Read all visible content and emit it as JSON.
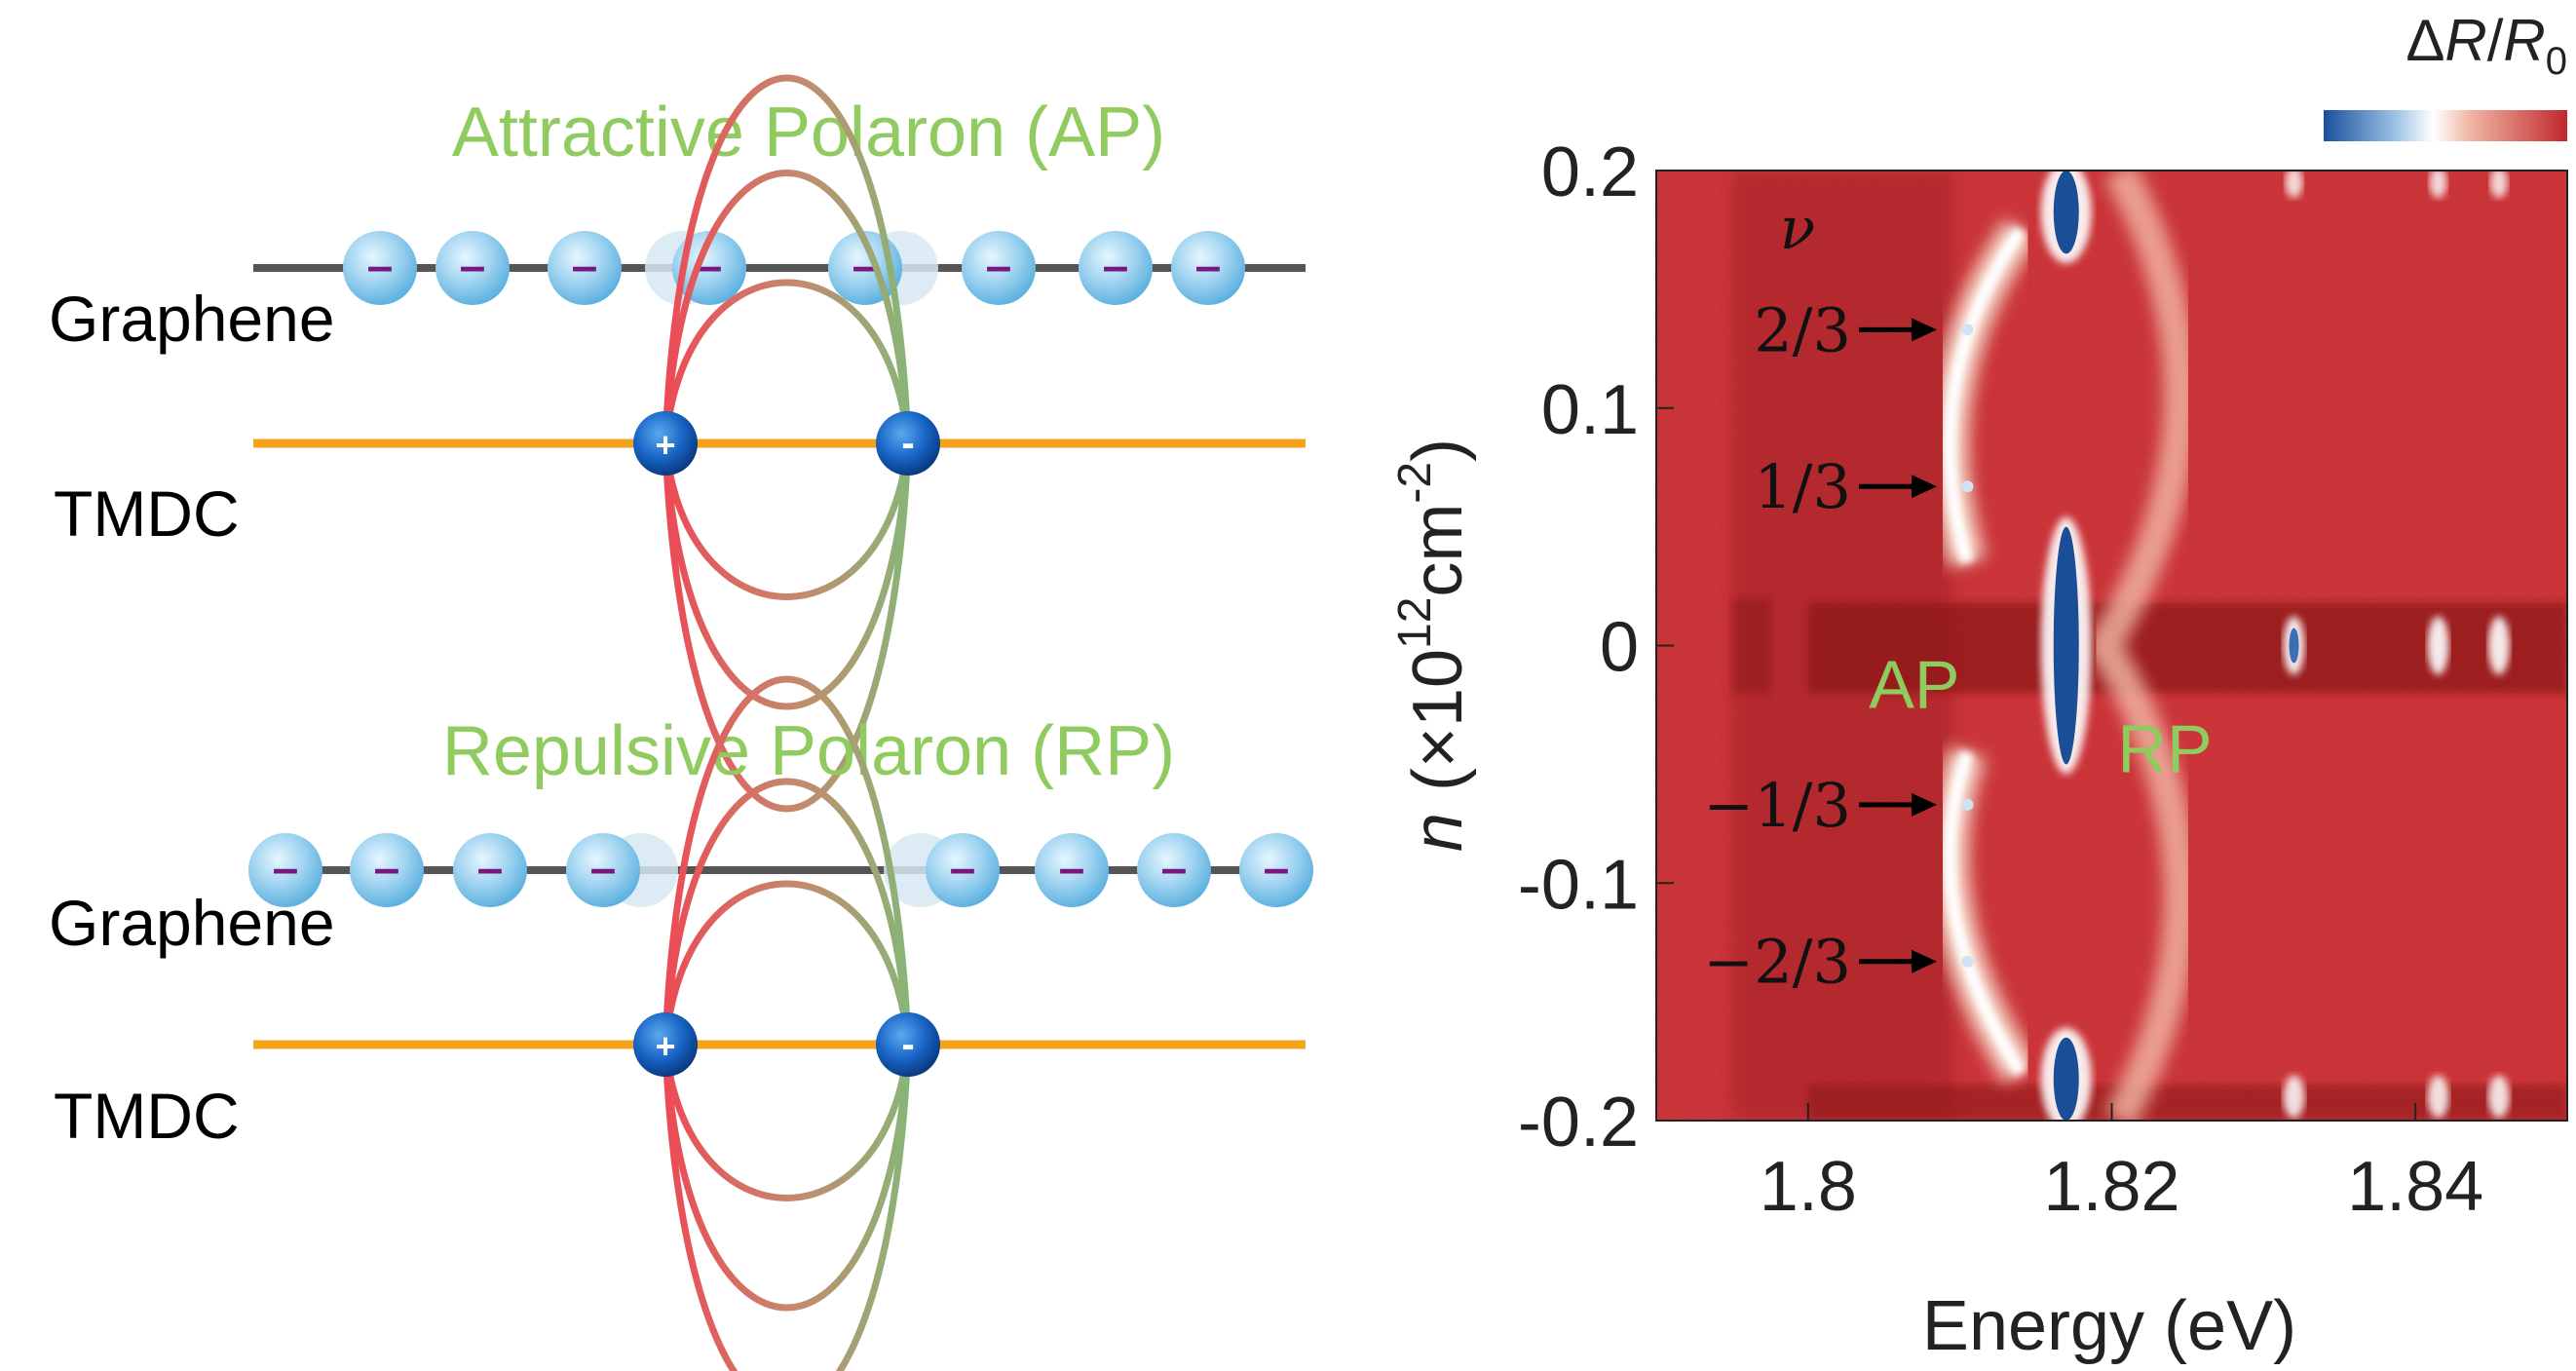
{
  "left_panel": {
    "top": {
      "title": "Attractive Polaron (AP)",
      "graphene_label": "Graphene",
      "tmdc_label": "TMDC"
    },
    "bottom": {
      "title": "Repulsive Polaron (RP)",
      "graphene_label": "Graphene",
      "tmdc_label": "TMDC"
    },
    "hole_symbol": "+",
    "electron_symbol": "-",
    "charge_symbol": "–"
  },
  "colorbar": {
    "label_delta": "Δ",
    "label_r": "R",
    "label_slash": "/",
    "label_r0": "R",
    "label_sub": "0",
    "colors": [
      "#1b4f9c",
      "#ffffff",
      "#c0272d"
    ]
  },
  "colors": {
    "title_green": "#8fcb5e",
    "tmdc_line": "#f5a31a",
    "graphene_line": "#555555"
  },
  "chart_data": {
    "type": "heatmap",
    "title": "",
    "xlabel": "Energy (eV)",
    "ylabel_n": "n",
    "ylabel_unit": "(×10",
    "ylabel_exp": "12",
    "ylabel_cm": "cm",
    "ylabel_exp2": "-2",
    "ylabel_close": ")",
    "xlim": [
      1.79,
      1.85
    ],
    "ylim": [
      -0.2,
      0.2
    ],
    "xticks": [
      1.8,
      1.82,
      1.84
    ],
    "xtick_labels": [
      "1.8",
      "1.82",
      "1.84"
    ],
    "yticks": [
      0.2,
      0.1,
      0,
      -0.1,
      -0.2
    ],
    "ytick_labels": [
      "0.2",
      "0.1",
      "0",
      "-0.1",
      "-0.2"
    ],
    "nu_label": "ν",
    "fillings": [
      {
        "label": "2/3",
        "n": 0.133,
        "energy": 1.8105
      },
      {
        "label": "1/3",
        "n": 0.067,
        "energy": 1.8105
      },
      {
        "label": "−1/3",
        "n": -0.067,
        "energy": 1.8105
      },
      {
        "label": "−2/3",
        "n": -0.133,
        "energy": 1.8105
      }
    ],
    "branch_labels": [
      {
        "text": "AP",
        "energy": 1.807,
        "n": -0.016
      },
      {
        "text": "RP",
        "energy": 1.8235,
        "n": -0.043
      }
    ]
  }
}
